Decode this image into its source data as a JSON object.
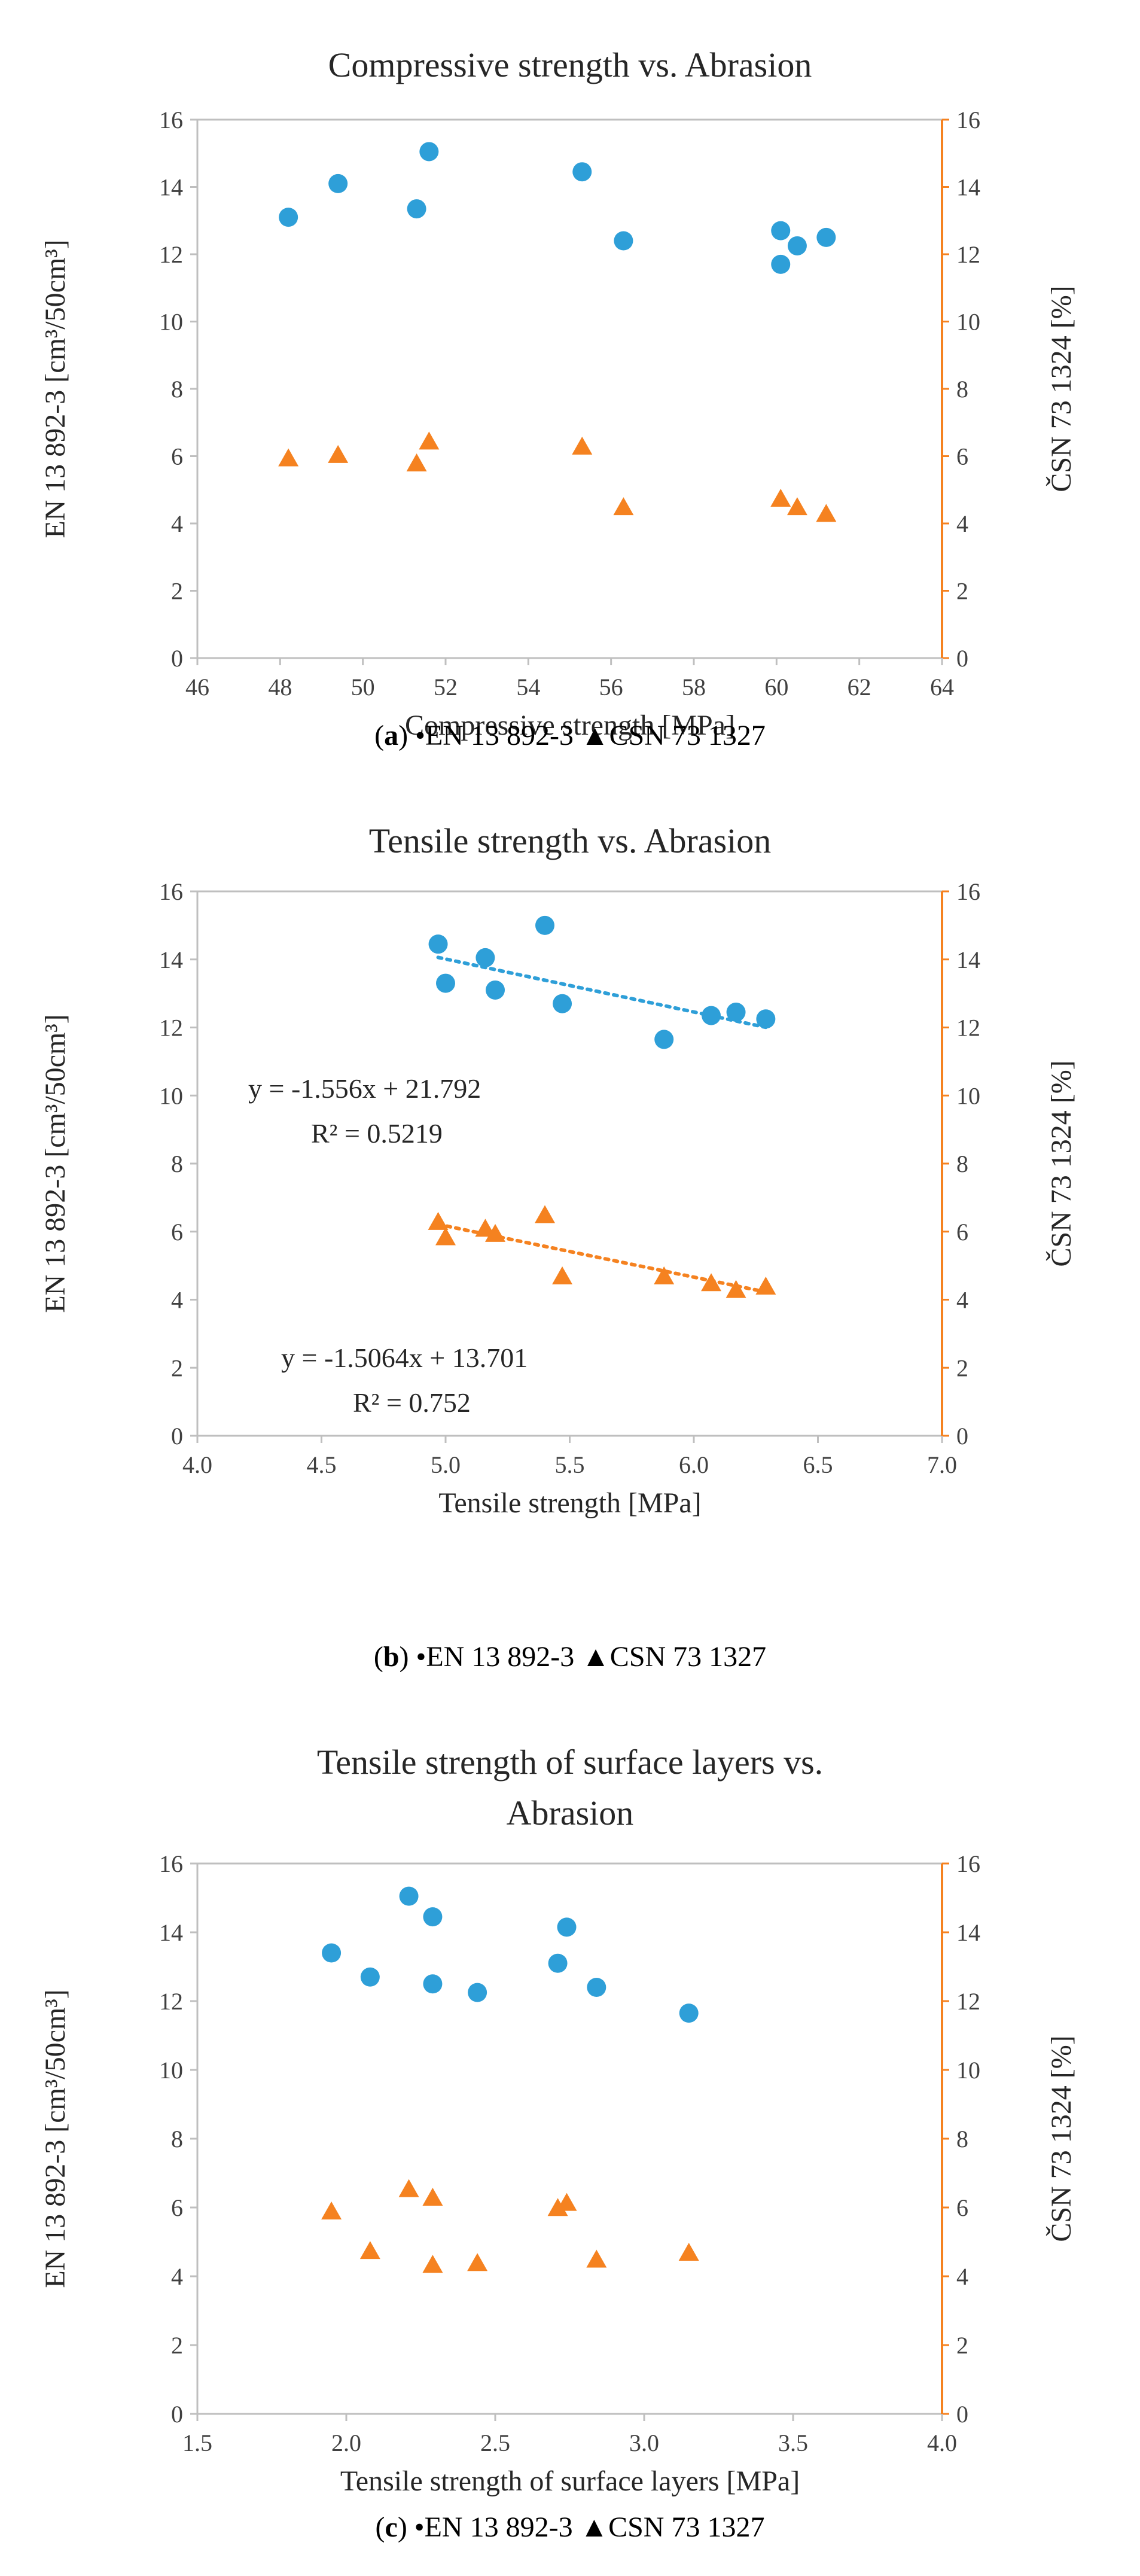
{
  "colors": {
    "series_en": "#2e9fd8",
    "series_csn": "#f58220",
    "axis": "#bfbfbf",
    "right_axis": "#f58220"
  },
  "chart_data": [
    {
      "type": "scatter",
      "title": "Compressive strength vs. Abrasion",
      "title_lines": [
        "Compressive strength vs. Abrasion"
      ],
      "xlabel": "Compressive strength [MPa]",
      "ylabel_left": "EN 13 892-3 [cm³/50cm³]",
      "ylabel_right": "ČSN 73 1324 [%]",
      "xlim": [
        46,
        64
      ],
      "xticks": [
        "46",
        "48",
        "50",
        "52",
        "54",
        "56",
        "58",
        "60",
        "62",
        "64"
      ],
      "ylim": [
        0,
        16
      ],
      "yticks": [
        "0",
        "2",
        "4",
        "6",
        "8",
        "10",
        "12",
        "14",
        "16"
      ],
      "grid": false,
      "series": [
        {
          "name": "EN 13 892-3",
          "marker": "circle",
          "axis": "left",
          "x": [
            48.2,
            49.4,
            51.3,
            51.6,
            55.3,
            56.3,
            60.1,
            60.1,
            60.5,
            61.2
          ],
          "y": [
            13.1,
            14.1,
            13.35,
            15.05,
            14.45,
            12.4,
            12.7,
            11.7,
            12.25,
            12.5
          ]
        },
        {
          "name": "CSN 73 1327",
          "marker": "triangle",
          "axis": "right",
          "x": [
            48.2,
            49.4,
            51.3,
            51.6,
            55.3,
            56.3,
            60.1,
            60.5,
            61.2
          ],
          "y": [
            5.9,
            6.0,
            5.75,
            6.4,
            6.25,
            4.45,
            4.7,
            4.45,
            4.25
          ]
        }
      ],
      "caption": {
        "letter": "a",
        "open": "(",
        "close": ")",
        "bullet": "•",
        "series1": "EN 13 892-3",
        "triangle": "▲",
        "series2": "CSN 73 1327"
      }
    },
    {
      "type": "scatter",
      "title": "Tensile strength vs. Abrasion",
      "title_lines": [
        "Tensile strength vs. Abrasion"
      ],
      "xlabel": "Tensile strength [MPa]",
      "ylabel_left": "EN 13 892-3 [cm³/50cm³]",
      "ylabel_right": "ČSN 73 1324 [%]",
      "xlim": [
        4.0,
        7.0
      ],
      "xticks": [
        "4.0",
        "4.5",
        "5.0",
        "5.5",
        "6.0",
        "6.5",
        "7.0"
      ],
      "ylim": [
        0,
        16
      ],
      "yticks": [
        "0",
        "2",
        "4",
        "6",
        "8",
        "10",
        "12",
        "14",
        "16"
      ],
      "grid": false,
      "series": [
        {
          "name": "EN 13 892-3",
          "marker": "circle",
          "axis": "left",
          "x": [
            4.97,
            5.0,
            5.16,
            5.2,
            5.4,
            5.47,
            5.88,
            6.07,
            6.17,
            6.29
          ],
          "y": [
            14.45,
            13.3,
            14.05,
            13.1,
            15.0,
            12.7,
            11.65,
            12.35,
            12.45,
            12.25
          ],
          "trendline": {
            "slope": -1.556,
            "intercept": 21.792,
            "x_range": [
              4.97,
              6.29
            ]
          },
          "equation": "y = -1.556x + 21.792",
          "r2": "R² = 0.5219"
        },
        {
          "name": "CSN 73 1327",
          "marker": "triangle",
          "axis": "right",
          "x": [
            4.97,
            5.0,
            5.16,
            5.2,
            5.4,
            5.47,
            5.88,
            6.07,
            6.17,
            6.29
          ],
          "y": [
            6.25,
            5.8,
            6.05,
            5.9,
            6.45,
            4.65,
            4.65,
            4.45,
            4.25,
            4.35
          ],
          "trendline": {
            "slope": -1.5064,
            "intercept": 13.701,
            "x_range": [
              4.97,
              6.29
            ]
          },
          "equation": "y = -1.5064x + 13.701",
          "r2": "R² = 0.752"
        }
      ],
      "caption": {
        "letter": "b",
        "open": "(",
        "close": ")",
        "bullet": "•",
        "series1": "EN 13 892-3",
        "triangle": "▲",
        "series2": "CSN 73 1327"
      }
    },
    {
      "type": "scatter",
      "title": "Tensile strength of surface layers vs. Abrasion",
      "title_lines": [
        "Tensile strength of surface layers vs.",
        "Abrasion"
      ],
      "xlabel": "Tensile strength of surface layers [MPa]",
      "ylabel_left": "EN 13 892-3 [cm³/50cm³]",
      "ylabel_right": "ČSN 73 1324 [%]",
      "xlim": [
        1.5,
        4.0
      ],
      "xticks": [
        "1.5",
        "2.0",
        "2.5",
        "3.0",
        "3.5",
        "4.0"
      ],
      "ylim": [
        0,
        16
      ],
      "yticks": [
        "0",
        "2",
        "4",
        "6",
        "8",
        "10",
        "12",
        "14",
        "16"
      ],
      "grid": false,
      "series": [
        {
          "name": "EN 13 892-3",
          "marker": "circle",
          "axis": "left",
          "x": [
            1.95,
            2.08,
            2.21,
            2.29,
            2.29,
            2.44,
            2.71,
            2.74,
            2.84,
            3.15
          ],
          "y": [
            13.4,
            12.7,
            15.05,
            14.45,
            12.5,
            12.25,
            13.1,
            14.15,
            12.4,
            11.65
          ]
        },
        {
          "name": "CSN 73 1327",
          "marker": "triangle",
          "axis": "right",
          "x": [
            1.95,
            2.08,
            2.21,
            2.29,
            2.29,
            2.44,
            2.71,
            2.74,
            2.84,
            3.15
          ],
          "y": [
            5.85,
            4.7,
            6.5,
            6.25,
            4.3,
            4.35,
            5.95,
            6.1,
            4.45,
            4.65
          ]
        }
      ],
      "caption": {
        "letter": "c",
        "open": "(",
        "close": ")",
        "bullet": "•",
        "series1": "EN 13 892-3",
        "triangle": "▲",
        "series2": "CSN 73 1327"
      }
    }
  ]
}
